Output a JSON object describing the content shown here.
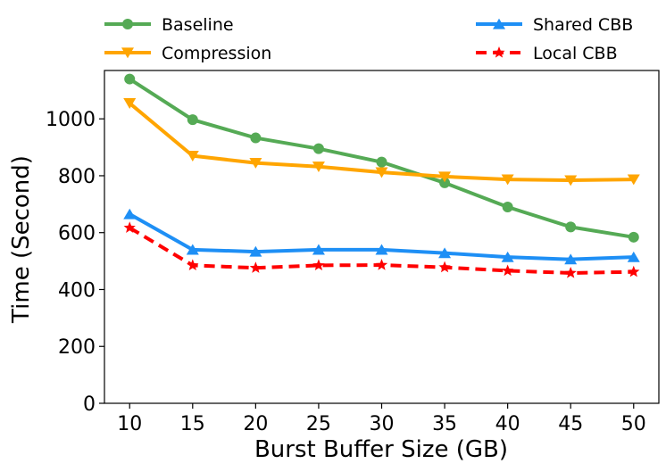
{
  "chart_data": {
    "type": "line",
    "xlabel": "Burst Buffer Size (GB)",
    "ylabel": "Time (Second)",
    "x": [
      10,
      15,
      20,
      25,
      30,
      35,
      40,
      45,
      50
    ],
    "xlim": [
      8,
      52
    ],
    "ylim": [
      0,
      1170
    ],
    "yticks": [
      0,
      200,
      400,
      600,
      800,
      1000
    ],
    "grid": false,
    "legend_position": "top, outside plot, two columns",
    "series": [
      {
        "name": "Baseline",
        "color": "#55aa55",
        "marker": "circle",
        "dash": "solid",
        "values": [
          1140,
          997,
          933,
          895,
          848,
          775,
          690,
          620,
          584
        ]
      },
      {
        "name": "Compression",
        "color": "#ffa500",
        "marker": "triangle-down",
        "dash": "solid",
        "values": [
          1055,
          870,
          845,
          832,
          812,
          797,
          787,
          784,
          787
        ]
      },
      {
        "name": "Shared CBB",
        "color": "#1e8ff5",
        "marker": "triangle-up",
        "dash": "solid",
        "values": [
          665,
          540,
          533,
          540,
          540,
          528,
          514,
          506,
          514
        ]
      },
      {
        "name": "Local CBB",
        "color": "#ff0000",
        "marker": "star",
        "dash": "dashed",
        "values": [
          617,
          485,
          476,
          485,
          486,
          478,
          466,
          458,
          462
        ]
      }
    ]
  }
}
